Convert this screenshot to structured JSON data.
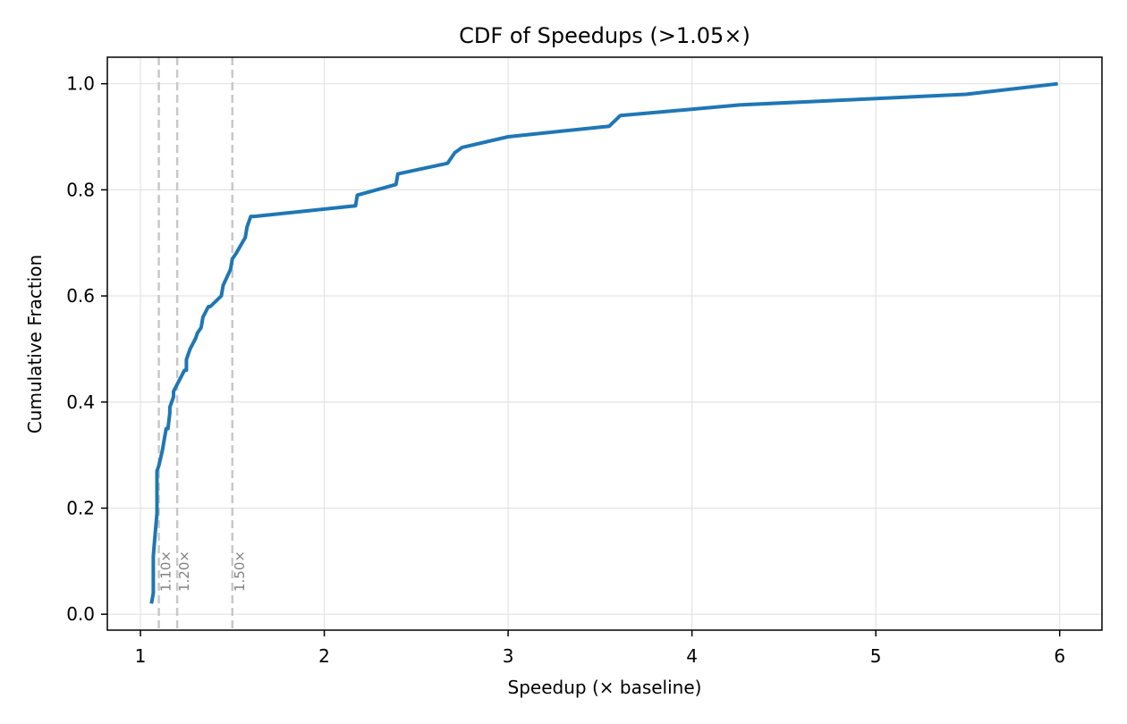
{
  "chart_data": {
    "type": "line",
    "title": "CDF of Speedups (>1.05×)",
    "xlabel": "Speedup (× baseline)",
    "ylabel": "Cumulative Fraction",
    "xlim": [
      0.82,
      6.23
    ],
    "ylim": [
      -0.03,
      1.05
    ],
    "xticks": [
      1,
      2,
      3,
      4,
      5,
      6
    ],
    "xtick_labels": [
      "1",
      "2",
      "3",
      "4",
      "5",
      "6"
    ],
    "yticks": [
      0.0,
      0.2,
      0.4,
      0.6,
      0.8,
      1.0
    ],
    "ytick_labels": [
      "0.0",
      "0.2",
      "0.4",
      "0.6",
      "0.8",
      "1.0"
    ],
    "grid": true,
    "line_color": "#1f77b4",
    "reference_color": "#c8c8c8",
    "reference_lines": [
      {
        "x": 1.1,
        "label": "1.10×"
      },
      {
        "x": 1.2,
        "label": "1.20×"
      },
      {
        "x": 1.5,
        "label": "1.50×"
      }
    ],
    "series": [
      {
        "x": [
          1.06,
          1.07,
          1.07,
          1.08,
          1.09,
          1.09,
          1.09,
          1.1,
          1.1,
          1.12,
          1.13,
          1.14,
          1.15,
          1.16,
          1.16,
          1.18,
          1.18,
          1.24,
          1.25,
          1.25,
          1.27,
          1.3,
          1.31,
          1.33,
          1.34,
          1.37,
          1.37,
          1.38,
          1.44,
          1.45,
          1.49,
          1.5,
          1.52,
          1.57,
          1.58,
          1.6,
          1.62,
          2.17,
          2.18,
          2.39,
          2.4,
          2.67,
          2.71,
          2.75,
          3.0,
          3.55,
          3.61,
          4.26,
          5.49,
          5.99
        ],
        "y": [
          0.02,
          0.04,
          0.11,
          0.15,
          0.19,
          0.23,
          0.27,
          0.28,
          0.28,
          0.31,
          0.33,
          0.35,
          0.35,
          0.38,
          0.39,
          0.41,
          0.42,
          0.46,
          0.46,
          0.48,
          0.5,
          0.52,
          0.53,
          0.54,
          0.56,
          0.58,
          0.58,
          0.58,
          0.6,
          0.62,
          0.65,
          0.67,
          0.68,
          0.71,
          0.73,
          0.75,
          0.75,
          0.77,
          0.79,
          0.81,
          0.83,
          0.85,
          0.87,
          0.88,
          0.9,
          0.92,
          0.94,
          0.96,
          0.98,
          1.0
        ]
      }
    ]
  }
}
